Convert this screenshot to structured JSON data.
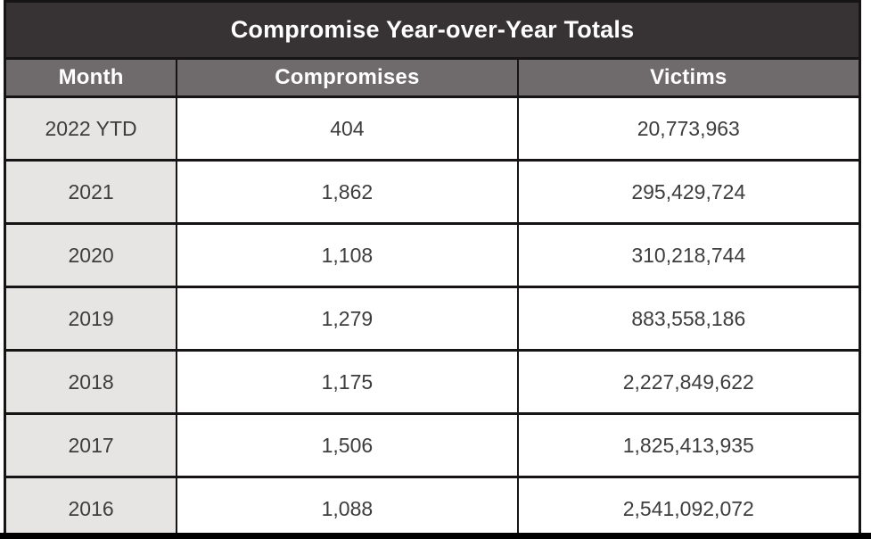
{
  "chart_data": {
    "type": "table",
    "title": "Compromise Year-over-Year Totals",
    "columns": [
      "Month",
      "Compromises",
      "Victims"
    ],
    "rows": [
      [
        "2022 YTD",
        "404",
        "20,773,963"
      ],
      [
        "2021",
        "1,862",
        "295,429,724"
      ],
      [
        "2020",
        "1,108",
        "310,218,744"
      ],
      [
        "2019",
        "1,279",
        "883,558,186"
      ],
      [
        "2018",
        "1,175",
        "2,227,849,622"
      ],
      [
        "2017",
        "1,506",
        "1,825,413,935"
      ],
      [
        "2016",
        "1,088",
        "2,541,092,072"
      ]
    ]
  },
  "colors": {
    "title_bar_bg": "#373334",
    "header_row_bg": "#6f6b6c",
    "month_column_bg": "#e6e5e3",
    "data_cell_bg": "#ffffff",
    "border": "#161414",
    "header_text": "#ffffff",
    "data_text": "#3d3d3d",
    "bottom_strip": "#000000"
  }
}
